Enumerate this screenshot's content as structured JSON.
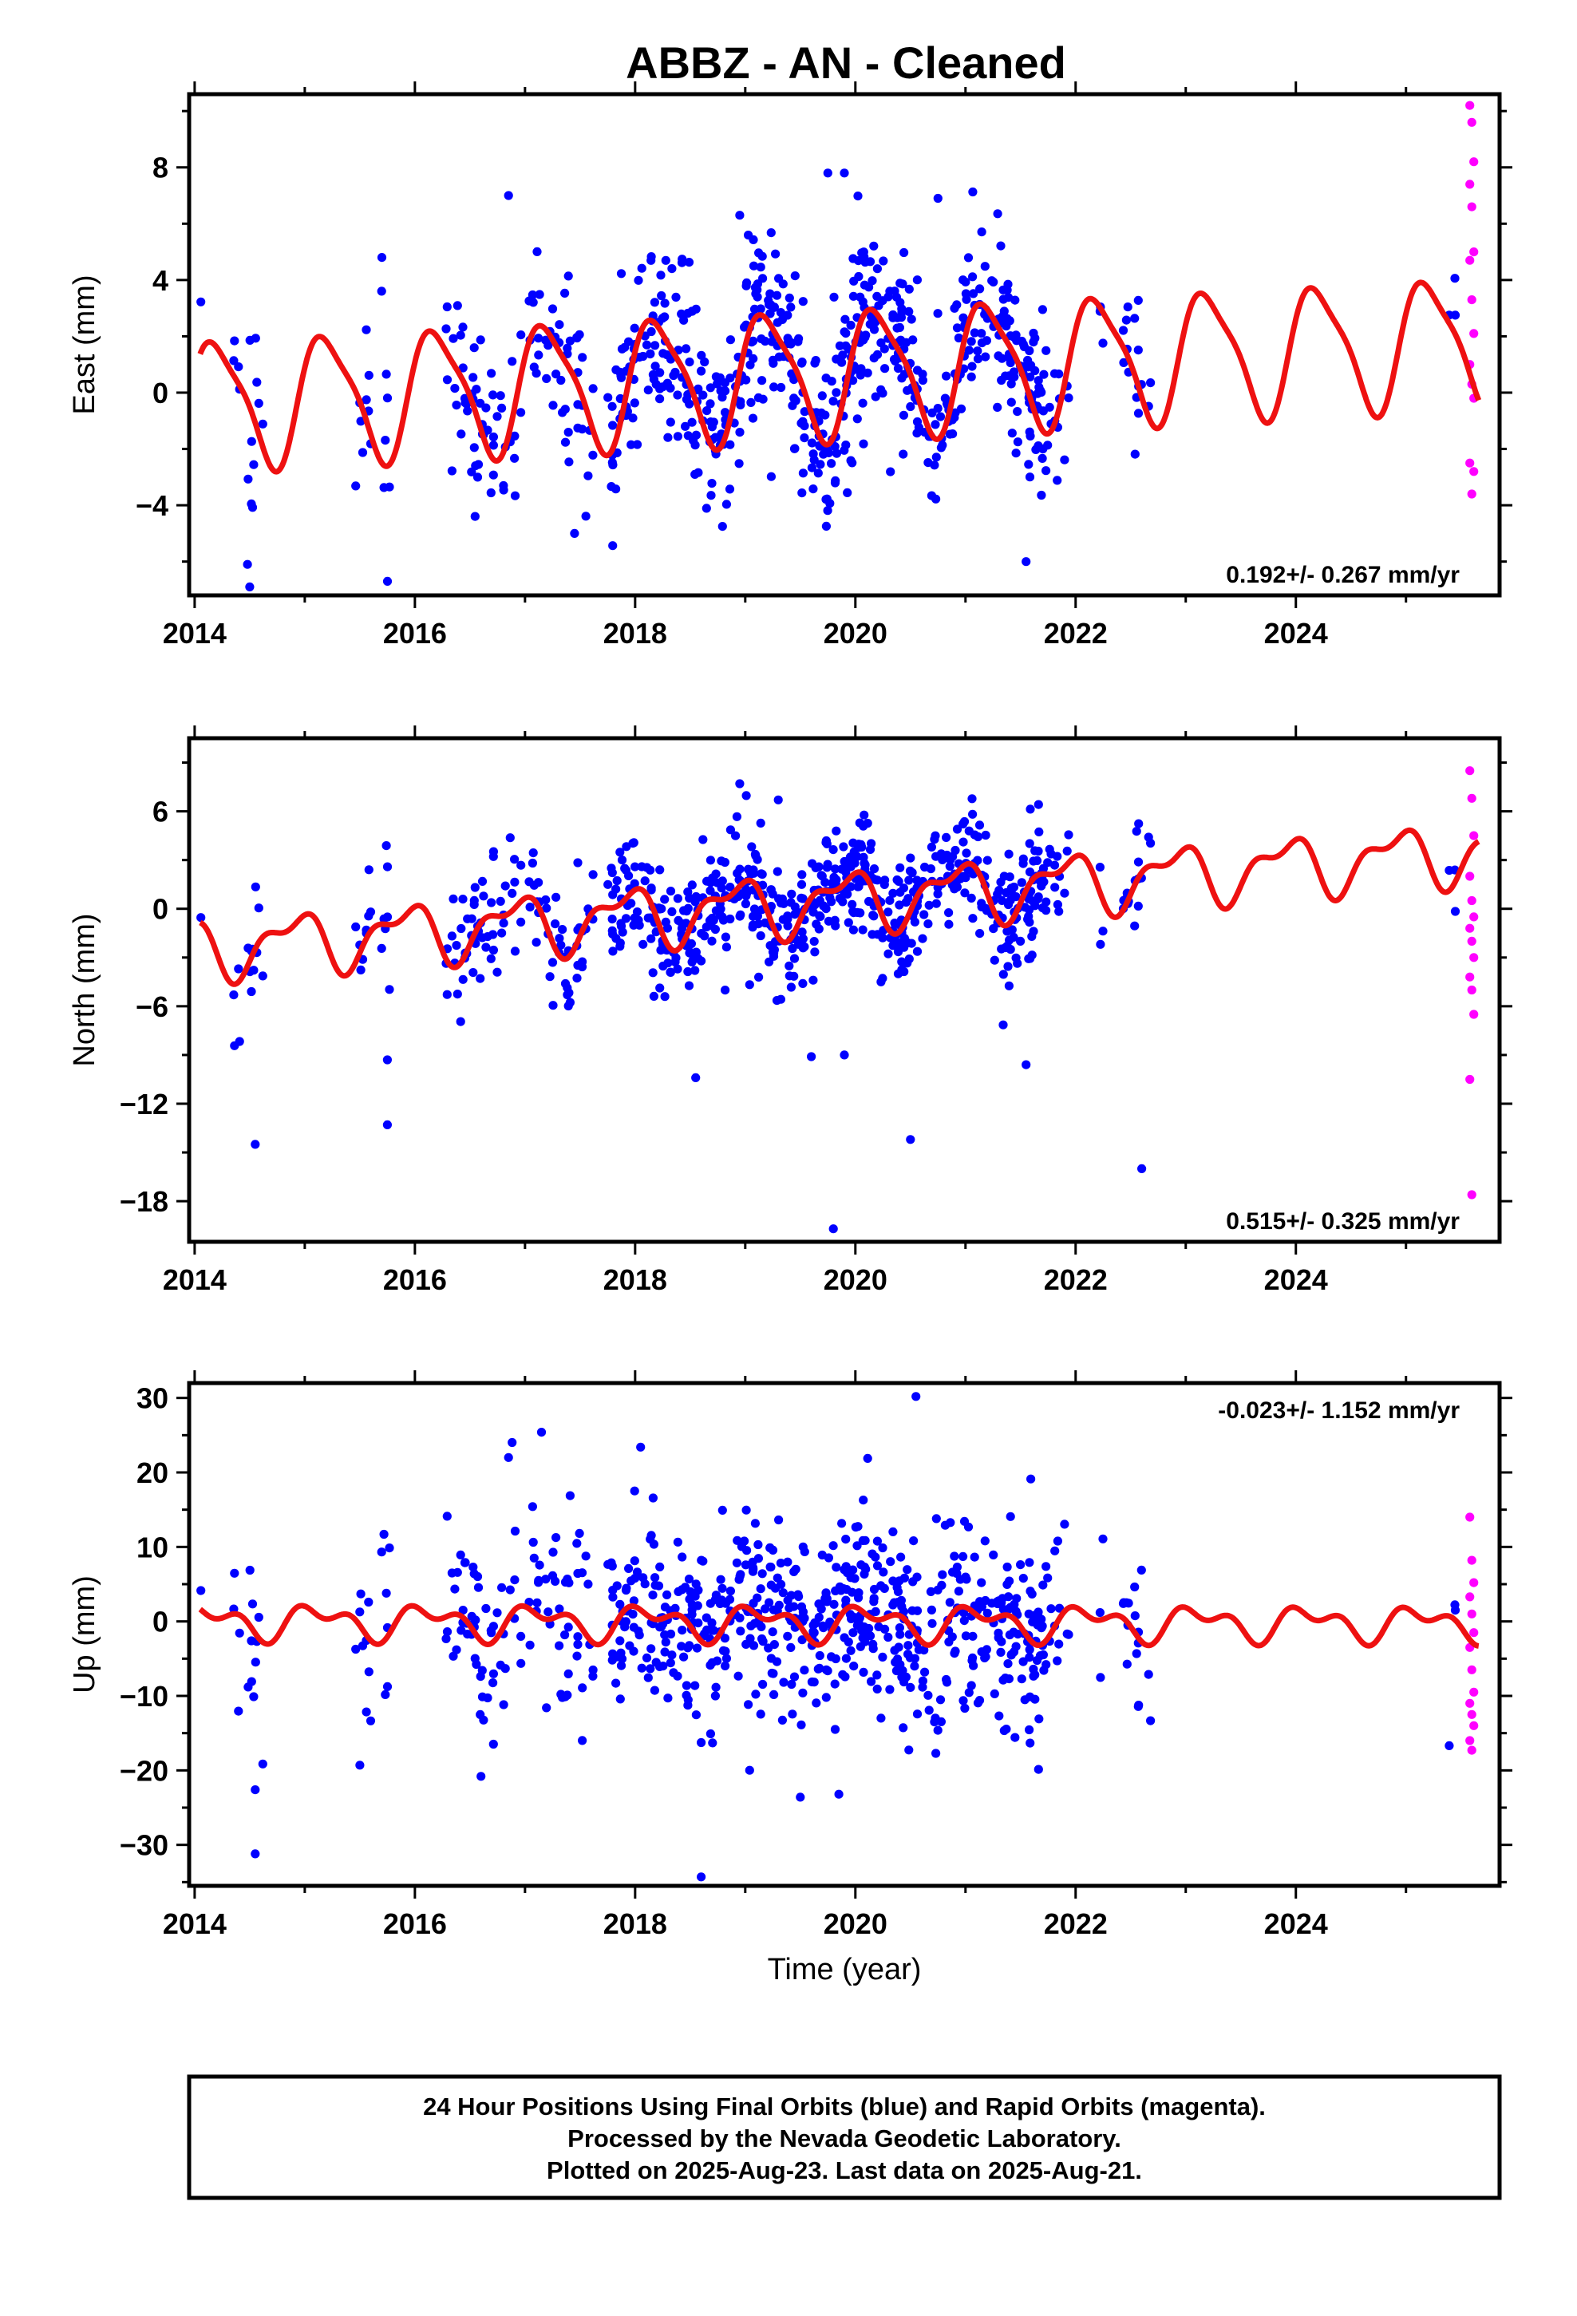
{
  "chart_data": {
    "type": "scatter",
    "title": "ABBZ  - AN - Cleaned",
    "x_ticks": [
      "2014",
      "2016",
      "2018",
      "2020",
      "2022",
      "2024"
    ],
    "xlim": [
      2013.95,
      2025.85
    ],
    "xlabel": "Time (year)",
    "series_colors": {
      "final": "#0000ff",
      "rapid": "#ff00ff",
      "model": "#ee1111"
    },
    "panels": [
      {
        "name": "east",
        "ylabel": "East (mm)",
        "ylim": [
          -7.2,
          10.6
        ],
        "y_ticks": [
          8,
          4,
          0,
          -4
        ],
        "y_tick_labels": [
          "8",
          "4",
          "0",
          "−4"
        ],
        "rate_label": "0.192+/- 0.267 mm/yr",
        "rate_position": "bottom-right",
        "model": {
          "offset": -0.4,
          "rate": 0.192,
          "annual_amp": 2.2,
          "annual_phase": 0.3,
          "semi_amp": 0.5,
          "semi_phase": 1.1
        },
        "scatter_sd": 1.6,
        "outliers": [
          [
            2014.5,
            -6.9
          ],
          [
            2014.48,
            -6.1
          ],
          [
            2016.85,
            7.0
          ],
          [
            2019.75,
            7.8
          ],
          [
            2019.9,
            7.8
          ],
          [
            2018.95,
            6.3
          ],
          [
            2020.75,
            6.9
          ],
          [
            2015.7,
            4.8
          ],
          [
            2021.55,
            -6.0
          ],
          [
            2017.45,
            -5.0
          ]
        ],
        "rapid": [
          10.2,
          9.6,
          8.2,
          7.4,
          6.6,
          5.0,
          4.7,
          3.3,
          2.1,
          1.0,
          0.3,
          -0.2,
          -2.5,
          -3.6,
          -2.8
        ]
      },
      {
        "name": "north",
        "ylabel": "North (mm)",
        "ylim": [
          -20.5,
          10.5
        ],
        "y_ticks": [
          6,
          0,
          -6,
          -12,
          -18
        ],
        "y_tick_labels": [
          "6",
          "0",
          "−6",
          "−12",
          "−18"
        ],
        "rate_label": "0.515+/- 0.325 mm/yr",
        "rate_position": "bottom-right",
        "model": {
          "offset": -2.5,
          "rate": 0.515,
          "annual_amp": 1.6,
          "annual_phase": 2.2,
          "semi_amp": 0.8,
          "semi_phase": 0.4
        },
        "scatter_sd": 1.9,
        "outliers": [
          [
            2014.55,
            -14.5
          ],
          [
            2015.75,
            -13.3
          ],
          [
            2015.75,
            -9.3
          ],
          [
            2018.95,
            7.7
          ],
          [
            2019.3,
            6.7
          ],
          [
            2019.8,
            -19.7
          ],
          [
            2020.5,
            -14.2
          ],
          [
            2022.6,
            -16.0
          ],
          [
            2018.55,
            -10.4
          ],
          [
            2019.6,
            -9.1
          ],
          [
            2019.9,
            -9.0
          ],
          [
            2021.55,
            -9.6
          ]
        ],
        "rapid": [
          8.5,
          6.8,
          4.5,
          2.0,
          0.5,
          -0.5,
          -1.2,
          -2.0,
          -3.0,
          -4.2,
          -5.0,
          -6.5,
          -10.5,
          -17.6
        ]
      },
      {
        "name": "up",
        "ylabel": "Up (mm)",
        "ylim": [
          -35.5,
          32
        ],
        "y_ticks": [
          30,
          20,
          10,
          0,
          -10,
          -20,
          -30
        ],
        "y_tick_labels": [
          "30",
          "20",
          "10",
          "0",
          "−10",
          "−20",
          "−30"
        ],
        "rate_label": "-0.023+/- 1.152 mm/yr",
        "rate_position": "top-right",
        "model": {
          "offset": 0.0,
          "rate": -0.023,
          "annual_amp": 1.8,
          "annual_phase": 0.8,
          "semi_amp": 1.3,
          "semi_phase": 2.5
        },
        "scatter_sd": 6.5,
        "outliers": [
          [
            2014.55,
            -31.2
          ],
          [
            2014.55,
            -22.6
          ],
          [
            2016.85,
            22.0
          ],
          [
            2017.15,
            25.4
          ],
          [
            2018.05,
            23.4
          ],
          [
            2018.6,
            -34.3
          ],
          [
            2020.55,
            30.2
          ],
          [
            2019.5,
            -23.6
          ],
          [
            2019.85,
            -23.2
          ],
          [
            2015.5,
            -19.3
          ],
          [
            2016.6,
            -20.8
          ]
        ],
        "rapid": [
          14.0,
          8.2,
          5.2,
          3.3,
          1.0,
          -1.5,
          -3.5,
          -6.5,
          -9.5,
          -11.0,
          -12.5,
          -14.0,
          -16.0,
          -17.3
        ]
      }
    ],
    "rapid_x": 2025.58
  },
  "footer": {
    "line1": "24 Hour Positions Using Final Orbits (blue) and Rapid Orbits (magenta).",
    "line2": "Processed by the Nevada Geodetic Laboratory.",
    "line3": "Plotted on 2025-Aug-23. Last data on 2025-Aug-21."
  }
}
